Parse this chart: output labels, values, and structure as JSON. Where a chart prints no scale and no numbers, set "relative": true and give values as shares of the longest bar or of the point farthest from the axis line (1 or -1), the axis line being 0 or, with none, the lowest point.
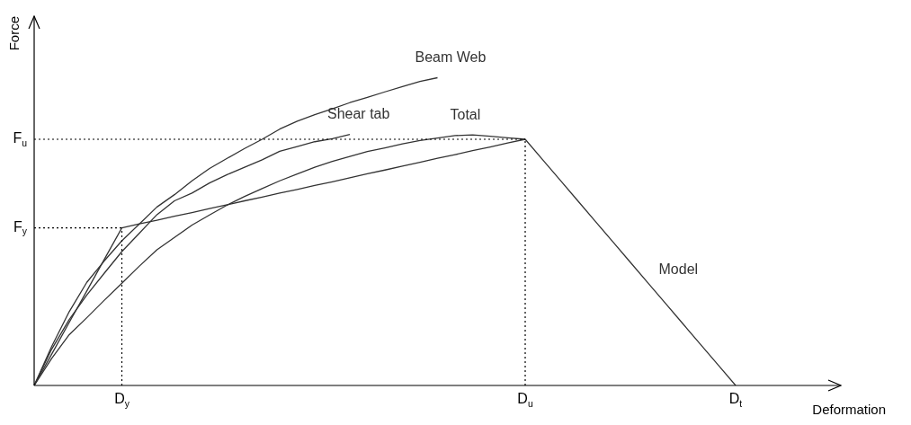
{
  "chart_data": {
    "type": "line",
    "relative": true,
    "xlabel": "Deformation",
    "ylabel": "Force",
    "legend": false,
    "marker": "none",
    "categories": [
      null,
      null,
      null,
      null,
      null,
      "D$_{y}$",
      null,
      null,
      null,
      null,
      null,
      null,
      null,
      null,
      null,
      null,
      null,
      null,
      null,
      null,
      null,
      null,
      null,
      null,
      null,
      null,
      null,
      null,
      "D$_{u}$",
      null,
      null,
      null,
      null,
      null,
      null,
      null,
      null,
      null,
      null,
      null,
      "D$_{t}$",
      null,
      null,
      null,
      null,
      null,
      null
    ],
    "ref_lines": [
      {
        "axis": "y",
        "value": 0.8,
        "label": "F$_{u}$",
        "line_style": "dotted",
        "color": "#000000"
      },
      {
        "axis": "y",
        "value": 0.512,
        "label": "F$_{y}$",
        "line_style": "dotted",
        "color": "#000000"
      },
      {
        "axis": "x",
        "value": "D$_{y}$",
        "line_style": "dotted",
        "color": "#000000"
      },
      {
        "axis": "x",
        "value": "D$_{u}$",
        "line_style": "dotted",
        "color": "#000000"
      }
    ],
    "series": [
      {
        "name": "Beam Web",
        "color": "#333333",
        "values": [
          0,
          0.127,
          0.24,
          0.335,
          0.405,
          0.47,
          0.525,
          0.58,
          0.62,
          0.665,
          0.705,
          0.738,
          0.77,
          0.8,
          0.833,
          0.859,
          0.88,
          0.899,
          0.919,
          0.936,
          0.954,
          0.971,
          0.988,
          1,
          null,
          null,
          null,
          null,
          null,
          null,
          null,
          null,
          null,
          null,
          null,
          null,
          null,
          null,
          null,
          null,
          null,
          null,
          null,
          null,
          null,
          null,
          null
        ]
      },
      {
        "name": "Shear tab",
        "color": "#333333",
        "values": [
          0,
          0.118,
          0.214,
          0.294,
          0.365,
          0.435,
          0.495,
          0.555,
          0.6,
          0.625,
          0.658,
          0.685,
          0.709,
          0.733,
          0.761,
          0.776,
          0.792,
          0.802,
          0.816,
          null,
          null,
          null,
          null,
          null,
          null,
          null,
          null,
          null,
          null,
          null,
          null,
          null,
          null,
          null,
          null,
          null,
          null,
          null,
          null,
          null,
          null,
          null,
          null,
          null,
          null,
          null,
          null
        ]
      },
      {
        "name": "Total",
        "color": "#333333",
        "values": [
          0,
          0.088,
          0.165,
          0.22,
          0.277,
          0.332,
          0.388,
          0.441,
          0.481,
          0.521,
          0.554,
          0.586,
          0.614,
          0.64,
          0.665,
          0.687,
          0.709,
          0.728,
          0.744,
          0.76,
          0.772,
          0.785,
          0.796,
          0.804,
          0.812,
          0.814,
          0.81,
          0.805,
          0.8,
          null,
          null,
          null,
          null,
          null,
          null,
          null,
          null,
          null,
          null,
          null,
          null,
          null,
          null,
          null,
          null,
          null,
          null
        ]
      },
      {
        "name": "Model",
        "color": "#333333",
        "values": [
          0,
          0.102,
          0.205,
          0.307,
          0.41,
          0.512,
          0.525,
          0.537,
          0.55,
          0.562,
          0.575,
          0.587,
          0.6,
          0.612,
          0.625,
          0.637,
          0.65,
          0.662,
          0.675,
          0.688,
          0.7,
          0.713,
          0.725,
          0.738,
          0.75,
          0.763,
          0.775,
          0.788,
          0.8,
          0.733,
          0.667,
          0.6,
          0.533,
          0.467,
          0.4,
          0.333,
          0.267,
          0.2,
          0.133,
          0.067,
          0,
          null,
          null,
          null,
          null,
          null,
          null
        ]
      }
    ]
  }
}
